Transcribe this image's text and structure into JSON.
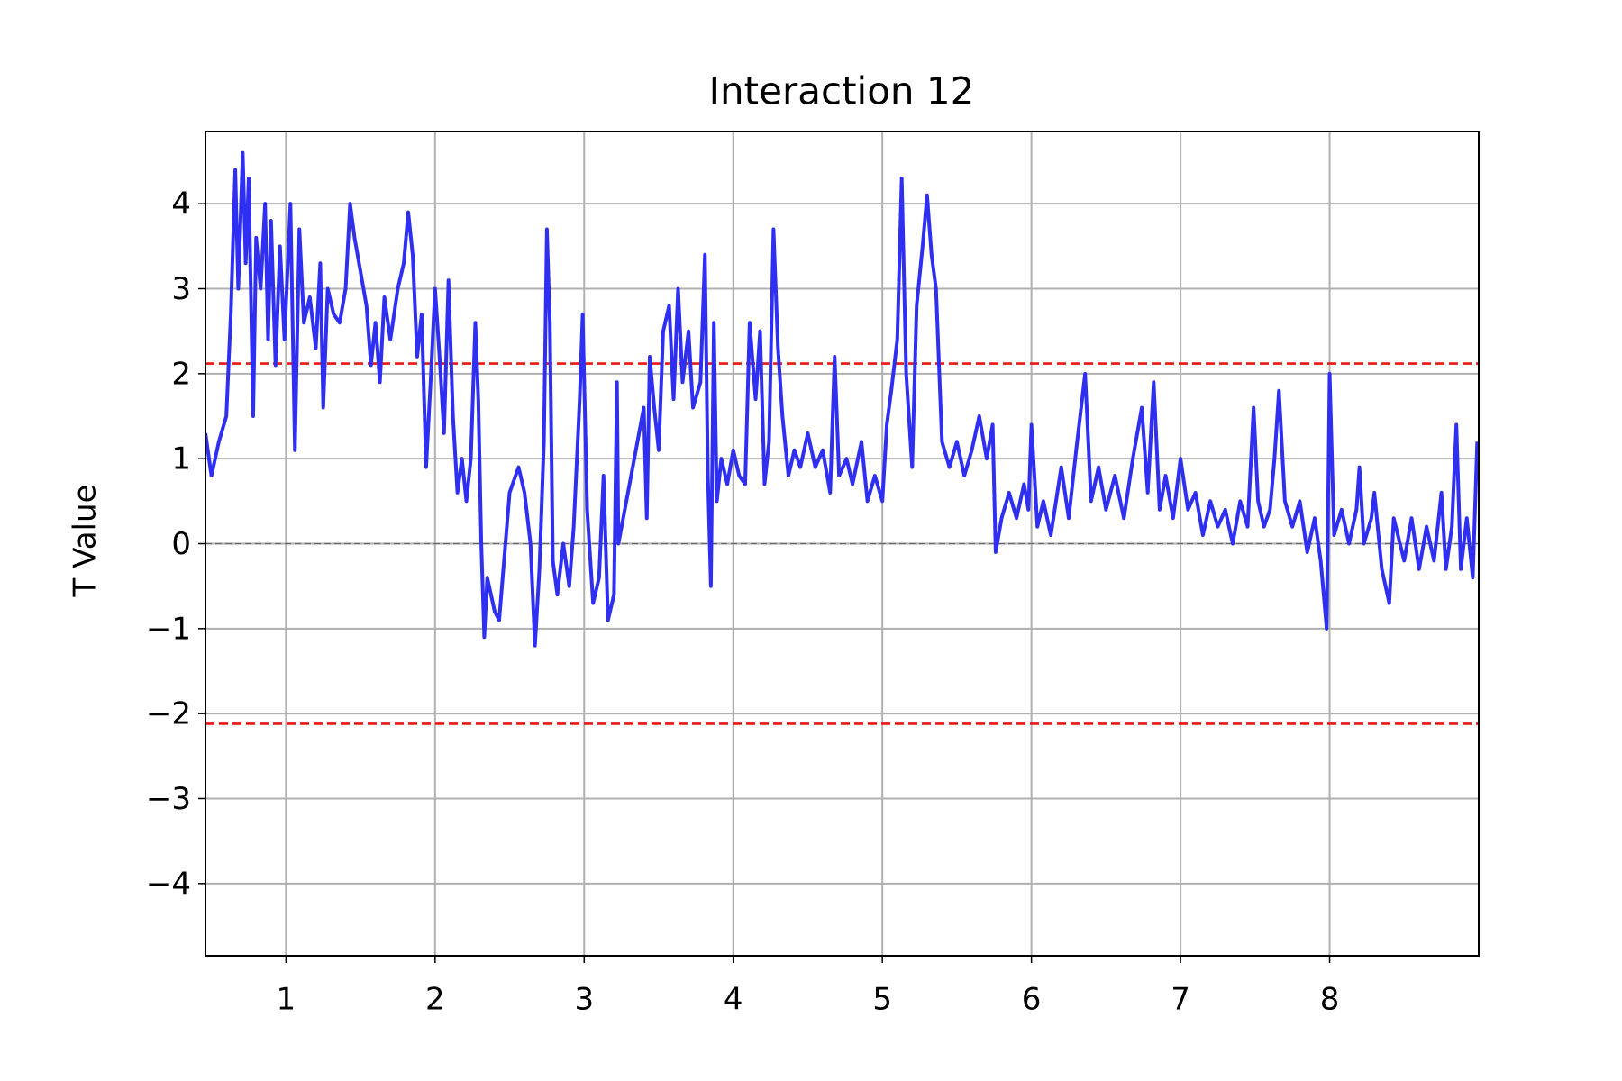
{
  "chart_data": {
    "type": "line",
    "title": "Interaction 12",
    "y_label": "T Value",
    "xlim": [
      0.46,
      9.0
    ],
    "ylim": [
      -4.85,
      4.85
    ],
    "xticks": [
      1,
      2,
      3,
      4,
      5,
      6,
      7,
      8
    ],
    "yticks": [
      {
        "value": -4,
        "label": "−4"
      },
      {
        "value": -3,
        "label": "−3"
      },
      {
        "value": -2,
        "label": "−2"
      },
      {
        "value": -1,
        "label": "−1"
      },
      0,
      1,
      2,
      3,
      4
    ],
    "grid": true,
    "reference_lines": [
      {
        "value": 2.12,
        "color": "#e8180f",
        "dash": "dashed"
      },
      {
        "value": -2.12,
        "color": "#e8180f",
        "dash": "dashed"
      },
      {
        "value": 0,
        "color": "#666666",
        "dash": "dashed"
      }
    ],
    "x": [
      0.46,
      0.5,
      0.55,
      0.6,
      0.63,
      0.66,
      0.68,
      0.71,
      0.73,
      0.75,
      0.78,
      0.8,
      0.83,
      0.86,
      0.88,
      0.9,
      0.93,
      0.96,
      0.99,
      1.03,
      1.06,
      1.09,
      1.12,
      1.16,
      1.2,
      1.23,
      1.25,
      1.28,
      1.32,
      1.36,
      1.4,
      1.43,
      1.46,
      1.5,
      1.54,
      1.57,
      1.6,
      1.63,
      1.66,
      1.7,
      1.75,
      1.79,
      1.82,
      1.85,
      1.88,
      1.91,
      1.94,
      1.97,
      2.0,
      2.03,
      2.06,
      2.09,
      2.12,
      2.15,
      2.18,
      2.21,
      2.24,
      2.27,
      2.29,
      2.31,
      2.33,
      2.35,
      2.4,
      2.43,
      2.5,
      2.56,
      2.6,
      2.64,
      2.67,
      2.7,
      2.73,
      2.75,
      2.77,
      2.79,
      2.82,
      2.86,
      2.9,
      2.93,
      2.97,
      2.99,
      3.02,
      3.06,
      3.1,
      3.13,
      3.16,
      3.2,
      3.22,
      3.23,
      3.4,
      3.42,
      3.44,
      3.47,
      3.5,
      3.53,
      3.57,
      3.6,
      3.63,
      3.66,
      3.7,
      3.73,
      3.78,
      3.81,
      3.83,
      3.85,
      3.87,
      3.89,
      3.92,
      3.96,
      4.0,
      4.04,
      4.08,
      4.11,
      4.15,
      4.18,
      4.21,
      4.24,
      4.27,
      4.3,
      4.33,
      4.37,
      4.41,
      4.45,
      4.5,
      4.55,
      4.6,
      4.65,
      4.68,
      4.71,
      4.76,
      4.8,
      4.86,
      4.9,
      4.95,
      5.0,
      5.03,
      5.06,
      5.1,
      5.13,
      5.16,
      5.2,
      5.23,
      5.27,
      5.3,
      5.33,
      5.36,
      5.4,
      5.45,
      5.5,
      5.55,
      5.6,
      5.65,
      5.7,
      5.74,
      5.76,
      5.8,
      5.85,
      5.9,
      5.95,
      5.98,
      6.0,
      6.04,
      6.08,
      6.13,
      6.2,
      6.25,
      6.3,
      6.36,
      6.4,
      6.45,
      6.5,
      6.56,
      6.62,
      6.68,
      6.74,
      6.78,
      6.82,
      6.86,
      6.9,
      6.95,
      7.0,
      7.05,
      7.1,
      7.15,
      7.2,
      7.25,
      7.3,
      7.35,
      7.4,
      7.45,
      7.49,
      7.52,
      7.56,
      7.6,
      7.63,
      7.66,
      7.7,
      7.75,
      7.8,
      7.85,
      7.9,
      7.94,
      7.98,
      8.0,
      8.03,
      8.08,
      8.13,
      8.18,
      8.2,
      8.23,
      8.28,
      8.3,
      8.35,
      8.4,
      8.43,
      8.5,
      8.55,
      8.6,
      8.65,
      8.7,
      8.75,
      8.78,
      8.82,
      8.85,
      8.88,
      8.92,
      8.96,
      8.99
    ],
    "series": [
      {
        "color": "#2f2ff2",
        "values": [
          1.3,
          0.8,
          1.2,
          1.5,
          2.7,
          4.4,
          3.0,
          4.6,
          3.3,
          4.3,
          1.5,
          3.6,
          3.0,
          4.0,
          2.4,
          3.8,
          2.1,
          3.5,
          2.4,
          4.0,
          1.1,
          3.7,
          2.6,
          2.9,
          2.3,
          3.3,
          1.6,
          3.0,
          2.7,
          2.6,
          3.0,
          4.0,
          3.6,
          3.2,
          2.8,
          2.1,
          2.6,
          1.9,
          2.9,
          2.4,
          3.0,
          3.3,
          3.9,
          3.4,
          2.2,
          2.7,
          0.9,
          1.9,
          3.0,
          2.2,
          1.3,
          3.1,
          1.5,
          0.6,
          1.0,
          0.5,
          1.0,
          2.6,
          1.7,
          0.0,
          -1.1,
          -0.4,
          -0.8,
          -0.9,
          0.6,
          0.9,
          0.6,
          0.0,
          -1.2,
          -0.3,
          1.2,
          3.7,
          2.6,
          -0.2,
          -0.6,
          0.0,
          -0.5,
          0.2,
          1.7,
          2.7,
          0.4,
          -0.7,
          -0.4,
          0.8,
          -0.9,
          -0.6,
          1.9,
          0.0,
          1.6,
          0.3,
          2.2,
          1.6,
          1.1,
          2.5,
          2.8,
          1.7,
          3.0,
          1.9,
          2.5,
          1.6,
          1.9,
          3.4,
          0.8,
          -0.5,
          2.6,
          0.5,
          1.0,
          0.7,
          1.1,
          0.8,
          0.7,
          2.6,
          1.7,
          2.5,
          0.7,
          1.2,
          3.7,
          2.3,
          1.5,
          0.8,
          1.1,
          0.9,
          1.3,
          0.9,
          1.1,
          0.6,
          2.2,
          0.8,
          1.0,
          0.7,
          1.2,
          0.5,
          0.8,
          0.5,
          1.4,
          1.8,
          2.4,
          4.3,
          2.0,
          0.9,
          2.8,
          3.5,
          4.1,
          3.4,
          3.0,
          1.2,
          0.9,
          1.2,
          0.8,
          1.1,
          1.5,
          1.0,
          1.4,
          -0.1,
          0.3,
          0.6,
          0.3,
          0.7,
          0.4,
          1.4,
          0.2,
          0.5,
          0.1,
          0.9,
          0.3,
          1.1,
          2.0,
          0.5,
          0.9,
          0.4,
          0.8,
          0.3,
          1.0,
          1.6,
          0.6,
          1.9,
          0.4,
          0.8,
          0.3,
          1.0,
          0.4,
          0.6,
          0.1,
          0.5,
          0.2,
          0.4,
          0.0,
          0.5,
          0.2,
          1.6,
          0.5,
          0.2,
          0.4,
          1.0,
          1.8,
          0.5,
          0.2,
          0.5,
          -0.1,
          0.3,
          -0.2,
          -1.0,
          2.0,
          0.1,
          0.4,
          0.0,
          0.4,
          0.9,
          0.0,
          0.3,
          0.6,
          -0.3,
          -0.7,
          0.3,
          -0.2,
          0.3,
          -0.3,
          0.2,
          -0.2,
          0.6,
          -0.3,
          0.2,
          1.4,
          -0.3,
          0.3,
          -0.4,
          1.2
        ]
      }
    ]
  }
}
